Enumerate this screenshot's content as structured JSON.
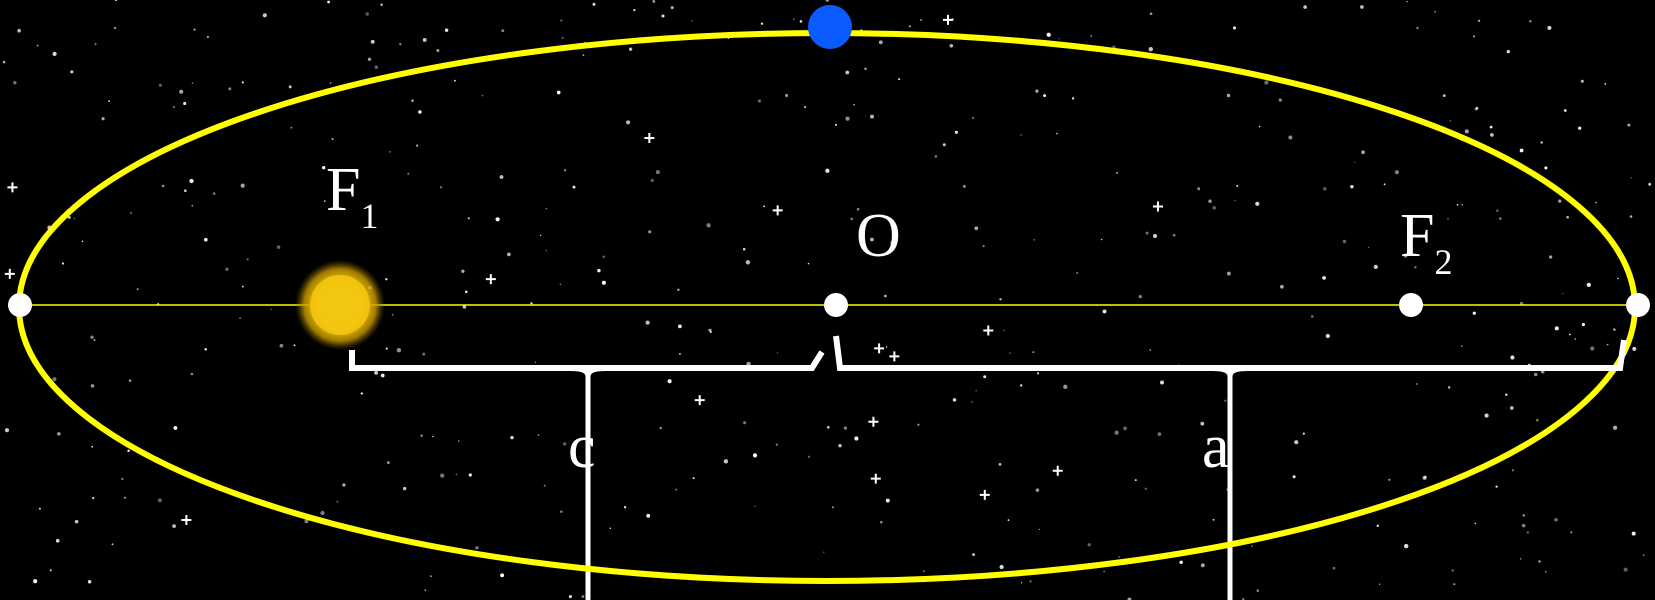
{
  "colors": {
    "background": "#000000",
    "orbit": "#ffff00",
    "axis": "#ffff00",
    "sun": "#f2c200",
    "planet": "#0a5cff",
    "points": "#ffffff",
    "brackets": "#ffffff",
    "stars": "#ffffff"
  },
  "icons": {
    "sun": "sun-icon",
    "planet": "planet-icon"
  },
  "labels": {
    "focus1": {
      "main": "F",
      "sub": "1"
    },
    "center": "O",
    "focus2": {
      "main": "F",
      "sub": "2"
    },
    "c_bracket": "c",
    "a_bracket": "a"
  }
}
